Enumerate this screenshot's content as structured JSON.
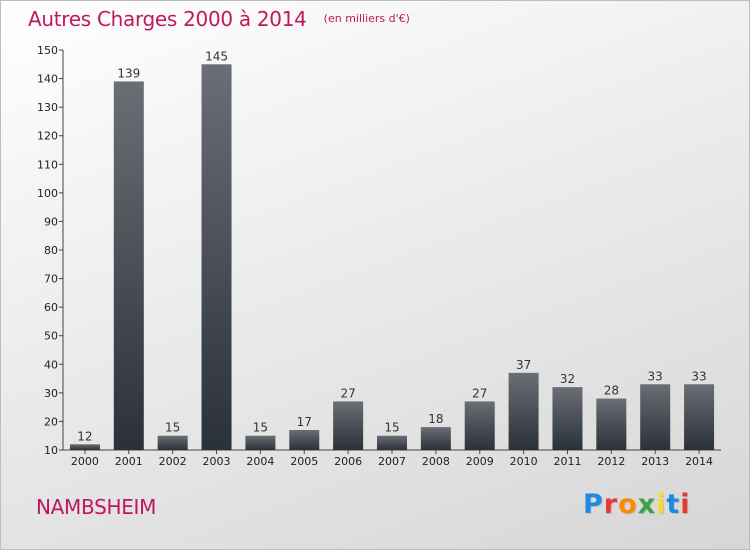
{
  "title": "Autres Charges 2000 à 2014",
  "subtitle": "(en milliers d'€)",
  "city": "NAMBSHEIM",
  "logo": {
    "text": "Proxiti",
    "letter_colors": [
      "#1e88e5",
      "#e53935",
      "#fb8c00",
      "#43a047",
      "#fdd835",
      "#1e88e5",
      "#e53935"
    ]
  },
  "colors": {
    "accent": "#c0175d",
    "bar_top": "#6a6e75",
    "bar_bottom": "#2b3139"
  },
  "chart_data": {
    "type": "bar",
    "categories": [
      "2000",
      "2001",
      "2002",
      "2003",
      "2004",
      "2005",
      "2006",
      "2007",
      "2008",
      "2009",
      "2010",
      "2011",
      "2012",
      "2013",
      "2014"
    ],
    "values": [
      12,
      139,
      15,
      145,
      15,
      17,
      27,
      15,
      18,
      27,
      37,
      32,
      28,
      33,
      33
    ],
    "ylim": [
      10,
      150
    ],
    "yticks": [
      10,
      20,
      30,
      40,
      50,
      60,
      70,
      80,
      90,
      100,
      110,
      120,
      130,
      140,
      150
    ],
    "grid": false,
    "data_labels": true
  }
}
